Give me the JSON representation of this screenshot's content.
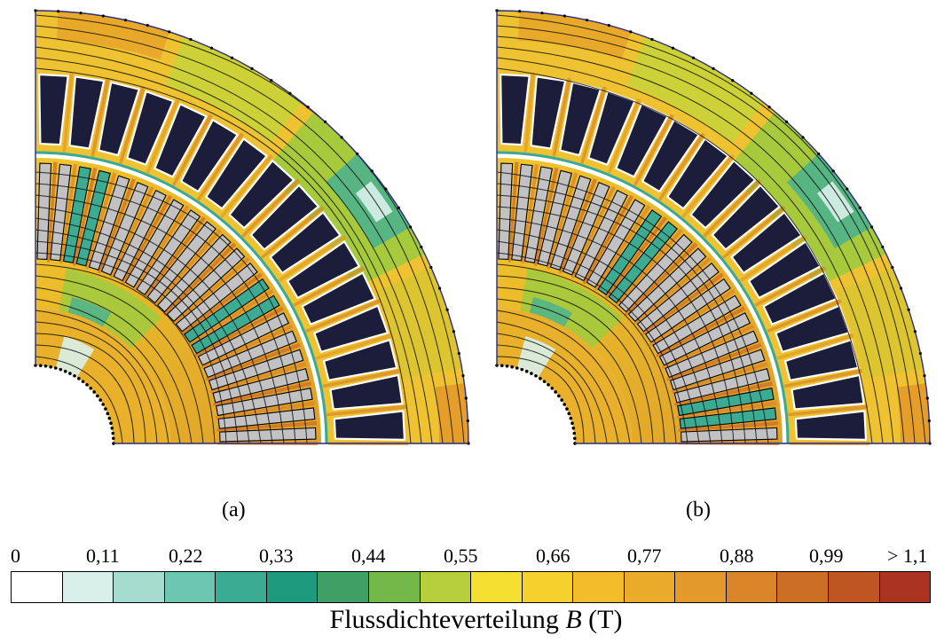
{
  "panels": [
    {
      "label": "(a)",
      "rotor_phase": 0
    },
    {
      "label": "(b)",
      "rotor_phase": 0.45
    }
  ],
  "legend": {
    "ticks": [
      "0",
      "0,11",
      "0,22",
      "0,33",
      "0,44",
      "0,55",
      "0,66",
      "0,77",
      "0,88",
      "0,99",
      "> 1,1"
    ],
    "colors": [
      "#ffffff",
      "#d9efea",
      "#a6dccf",
      "#6cc6b0",
      "#3bab94",
      "#1e9a7e",
      "#3f9f64",
      "#74b849",
      "#b7cf3c",
      "#f5e031",
      "#f6d02c",
      "#f2bc2a",
      "#ebab2a",
      "#e39a2a",
      "#d9862a",
      "#cd6e27",
      "#be5523",
      "#aa3322"
    ],
    "title_text": "Flussdichteverteilung ",
    "title_symbol": "B",
    "title_unit": " (T)"
  }
}
